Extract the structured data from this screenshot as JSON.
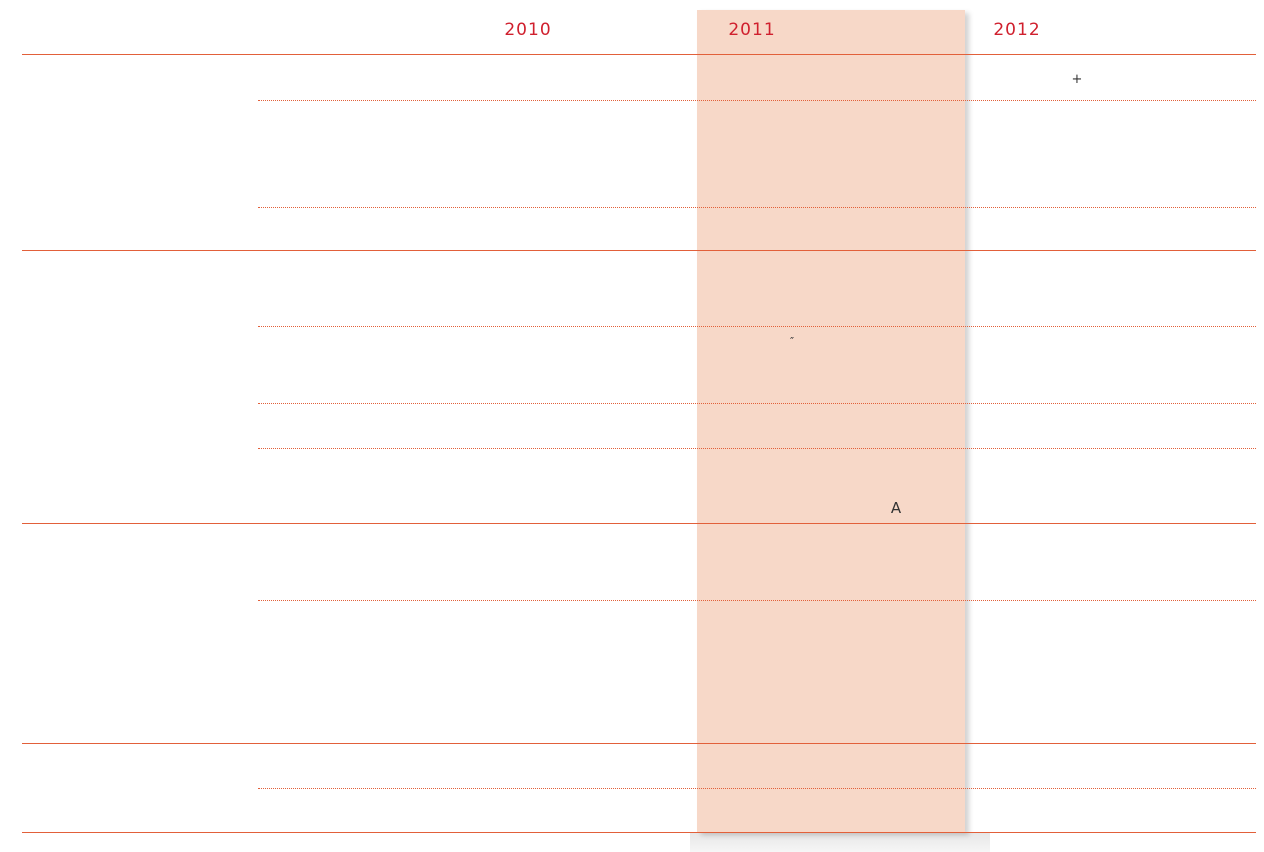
{
  "header": {
    "columns": [
      "2010",
      "2011",
      "2012"
    ]
  },
  "symbols": [
    "+",
    "″",
    "A"
  ]
}
